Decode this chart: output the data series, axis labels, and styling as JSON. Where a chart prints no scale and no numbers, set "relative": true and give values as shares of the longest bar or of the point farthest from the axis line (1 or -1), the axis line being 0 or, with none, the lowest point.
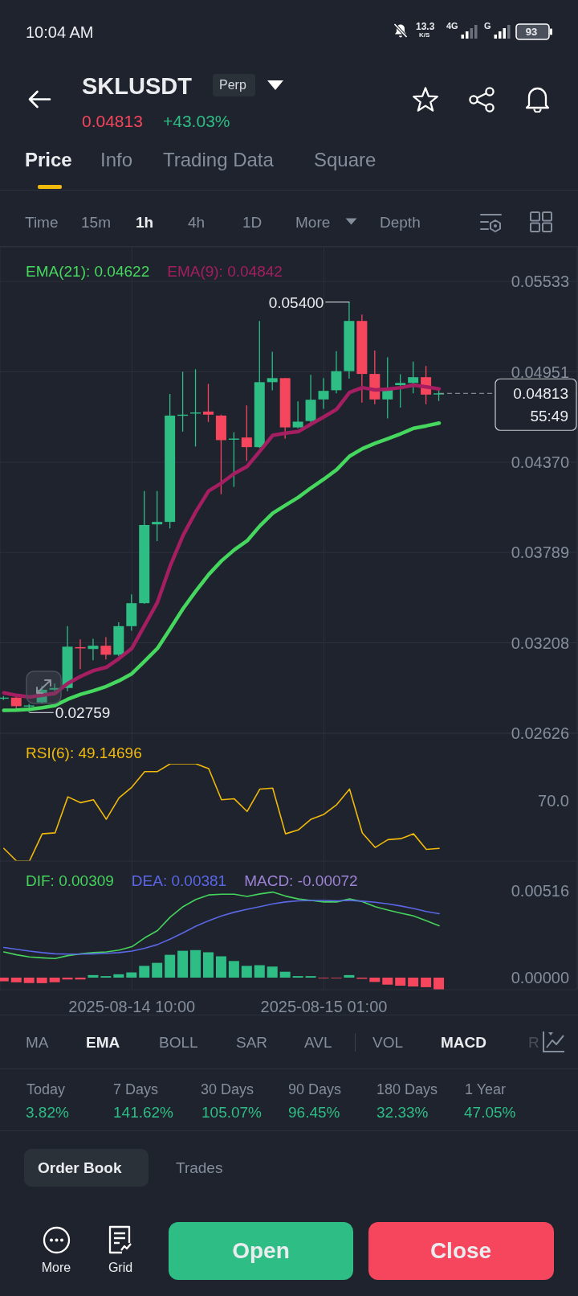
{
  "chart_data": [
    {
      "type": "other",
      "title": "SKLUSDT",
      "annotations": [
        "10:04 AM",
        "13.3",
        "K/S",
        "4G",
        "G",
        "93",
        "Perp",
        "0.04813",
        "+43.03%",
        "Price",
        "Info",
        "Trading Data",
        "Square",
        "Time",
        "15m",
        "1h",
        "4h",
        "1D",
        "More",
        "Depth"
      ]
    },
    {
      "type": "candlestick",
      "x": [
        "2025-08-14T00:00",
        "2025-08-14T01:00",
        "2025-08-14T02:00",
        "2025-08-14T03:00",
        "2025-08-14T04:00",
        "2025-08-14T05:00",
        "2025-08-14T06:00",
        "2025-08-14T07:00",
        "2025-08-14T08:00",
        "2025-08-14T09:00",
        "2025-08-14T10:00",
        "2025-08-14T11:00",
        "2025-08-14T12:00",
        "2025-08-14T13:00",
        "2025-08-14T14:00",
        "2025-08-14T15:00",
        "2025-08-14T16:00",
        "2025-08-14T17:00",
        "2025-08-14T18:00",
        "2025-08-14T19:00",
        "2025-08-14T20:00",
        "2025-08-14T21:00",
        "2025-08-14T22:00",
        "2025-08-14T23:00",
        "2025-08-15T00:00",
        "2025-08-15T01:00",
        "2025-08-15T02:00",
        "2025-08-15T03:00",
        "2025-08-15T04:00",
        "2025-08-15T05:00",
        "2025-08-15T06:00",
        "2025-08-15T07:00",
        "2025-08-15T08:00",
        "2025-08-15T09:00",
        "2025-08-15T10:00"
      ],
      "ohlc": [
        [
          0.0285,
          0.02865,
          0.0284,
          0.02855
        ],
        [
          0.02855,
          0.02865,
          0.02775,
          0.028
        ],
        [
          0.028,
          0.02815,
          0.02759,
          0.02805
        ],
        [
          0.02824,
          0.0293,
          0.02815,
          0.02906
        ],
        [
          0.02906,
          0.02945,
          0.02896,
          0.02917
        ],
        [
          0.02917,
          0.03315,
          0.02896,
          0.03183
        ],
        [
          0.0318,
          0.0323,
          0.03039,
          0.03172
        ],
        [
          0.03168,
          0.03234,
          0.03095,
          0.03189
        ],
        [
          0.03189,
          0.03244,
          0.03101,
          0.03131
        ],
        [
          0.03131,
          0.0334,
          0.03121,
          0.03315
        ],
        [
          0.03315,
          0.0352,
          0.03285,
          0.03463
        ],
        [
          0.03463,
          0.04185,
          0.03459,
          0.03966
        ],
        [
          0.0397,
          0.04185,
          0.03862,
          0.03986
        ],
        [
          0.03986,
          0.04809,
          0.03944,
          0.0467
        ],
        [
          0.04672,
          0.04952,
          0.04567,
          0.04676
        ],
        [
          0.04686,
          0.04968,
          0.04471,
          0.0469
        ],
        [
          0.04696,
          0.04874,
          0.04629,
          0.04676
        ],
        [
          0.0467,
          0.04676,
          0.04164,
          0.04512
        ],
        [
          0.04518,
          0.04563,
          0.04211,
          0.04522
        ],
        [
          0.04529,
          0.04735,
          0.04379,
          0.04467
        ],
        [
          0.04467,
          0.05279,
          0.04461,
          0.04885
        ],
        [
          0.04885,
          0.05081,
          0.04833,
          0.04911
        ],
        [
          0.04911,
          0.04911,
          0.04522,
          0.04594
        ],
        [
          0.04594,
          0.04762,
          0.04588,
          0.04631
        ],
        [
          0.04635,
          0.04932,
          0.04625,
          0.04772
        ],
        [
          0.04774,
          0.04911,
          0.04713,
          0.04829
        ],
        [
          0.04833,
          0.05085,
          0.04813,
          0.04956
        ],
        [
          0.04956,
          0.054,
          0.04907,
          0.05279
        ],
        [
          0.05279,
          0.0532,
          0.04754,
          0.04938
        ],
        [
          0.04938,
          0.05089,
          0.04743,
          0.04774
        ],
        [
          0.04774,
          0.05044,
          0.04651,
          0.04846
        ],
        [
          0.04866,
          0.04936,
          0.04721,
          0.0488
        ],
        [
          0.0488,
          0.05018,
          0.04813,
          0.04917
        ],
        [
          0.04917,
          0.04989,
          0.04743,
          0.04805
        ],
        [
          0.04809,
          0.0483,
          0.04764,
          0.04813
        ]
      ],
      "colors": [
        "#2ebd85",
        "#f6465d",
        "#2ebd85",
        "#2ebd85",
        "#2ebd85",
        "#2ebd85",
        "#f6465d",
        "#2ebd85",
        "#f6465d",
        "#2ebd85",
        "#2ebd85",
        "#2ebd85",
        "#2ebd85",
        "#2ebd85",
        "#2ebd85",
        "#2ebd85",
        "#f6465d",
        "#f6465d",
        "#2ebd85",
        "#f6465d",
        "#2ebd85",
        "#2ebd85",
        "#f6465d",
        "#2ebd85",
        "#2ebd85",
        "#2ebd85",
        "#2ebd85",
        "#2ebd85",
        "#f6465d",
        "#f6465d",
        "#2ebd85",
        "#2ebd85",
        "#2ebd85",
        "#f6465d",
        "#2ebd85"
      ],
      "series": [
        {
          "name": "EMA(21): 0.04622",
          "type": "line",
          "color": "#46d85e",
          "values": [
            0.02773,
            0.02775,
            0.0278,
            0.0279,
            0.02804,
            0.02845,
            0.02876,
            0.029,
            0.02927,
            0.02964,
            0.03009,
            0.0309,
            0.03172,
            0.03299,
            0.03428,
            0.03541,
            0.03647,
            0.03735,
            0.03806,
            0.03864,
            0.0396,
            0.04042,
            0.04093,
            0.04144,
            0.04205,
            0.04261,
            0.04322,
            0.04408,
            0.04457,
            0.04492,
            0.04522,
            0.04553,
            0.04588,
            0.04604,
            0.04622
          ]
        },
        {
          "name": "EMA(9): 0.04842",
          "type": "line",
          "color": "#a61e62",
          "values": [
            0.02886,
            0.0287,
            0.02859,
            0.0287,
            0.02882,
            0.02947,
            0.02992,
            0.03029,
            0.0305,
            0.03107,
            0.03172,
            0.0332,
            0.03469,
            0.03704,
            0.03899,
            0.04052,
            0.04185,
            0.04236,
            0.04297,
            0.04342,
            0.04441,
            0.04543,
            0.04557,
            0.04567,
            0.04615,
            0.04662,
            0.04711,
            0.04819,
            0.0485,
            0.04835,
            0.0484,
            0.0485,
            0.04866,
            0.04854,
            0.04842
          ]
        }
      ],
      "xlim": [
        "2025-08-13T23:42",
        "2025-08-15T20:47"
      ],
      "xticks": [
        {
          "value": "2025-08-14T10:00",
          "label": null
        },
        {
          "value": "2025-08-15T01:00",
          "label": null
        }
      ],
      "ylim": [
        0.02626,
        0.05756
      ],
      "yticks": [
        0.02626,
        0.03208,
        0.03789,
        {
          "value": 0.0437,
          "label": "0.04370"
        },
        0.04951,
        0.05533
      ],
      "grid": true,
      "legend": "top left",
      "tick_labels": "y",
      "ref_lines": [
        {
          "axis": "y",
          "value": 0.04813,
          "label": "0.04813",
          "line_style": "dashed",
          "color": "#9aa0aa"
        }
      ],
      "annotations": [
        {
          "text": "0.05400",
          "x": "2025-08-15T03:00",
          "y": 0.054
        },
        {
          "text": "0.02759",
          "x": "2025-08-14T02:00",
          "y": 0.02759
        },
        "55:49"
      ]
    },
    {
      "type": "line",
      "relative": true,
      "x": [
        "2025-08-14T00:00",
        "2025-08-14T01:00",
        "2025-08-14T02:00",
        "2025-08-14T03:00",
        "2025-08-14T04:00",
        "2025-08-14T05:00",
        "2025-08-14T06:00",
        "2025-08-14T07:00",
        "2025-08-14T08:00",
        "2025-08-14T09:00",
        "2025-08-14T10:00",
        "2025-08-14T11:00",
        "2025-08-14T12:00",
        "2025-08-14T13:00",
        "2025-08-14T14:00",
        "2025-08-14T15:00",
        "2025-08-14T16:00",
        "2025-08-14T17:00",
        "2025-08-14T18:00",
        "2025-08-14T19:00",
        "2025-08-14T20:00",
        "2025-08-14T21:00",
        "2025-08-14T22:00",
        "2025-08-14T23:00",
        "2025-08-15T00:00",
        "2025-08-15T01:00",
        "2025-08-15T02:00",
        "2025-08-15T03:00",
        "2025-08-15T04:00",
        "2025-08-15T05:00",
        "2025-08-15T06:00",
        "2025-08-15T07:00",
        "2025-08-15T08:00",
        "2025-08-15T09:00",
        "2025-08-15T10:00"
      ],
      "series": [
        {
          "name": "RSI(6): 49.14696",
          "color": "#f0b90b",
          "values": [
            0.13,
            0,
            0,
            0.28,
            0.29,
            0.66,
            0.6,
            0.63,
            0.43,
            0.65,
            0.76,
            0.92,
            0.92,
            1,
            1,
            1,
            0.95,
            0.63,
            0.64,
            0.51,
            0.74,
            0.75,
            0.28,
            0.32,
            0.43,
            0.48,
            0.58,
            0.74,
            0.29,
            0.14,
            0.22,
            0.23,
            0.28,
            0.12,
            0.13
          ]
        }
      ],
      "xlim": [
        "2025-08-13T23:42",
        "2025-08-15T20:47"
      ],
      "xticks": [
        {
          "value": "2025-08-14T10:00",
          "label": null
        },
        {
          "value": "2025-08-15T01:00",
          "label": null
        }
      ],
      "grid": "x",
      "legend": "top left",
      "tick_labels": false,
      "annotations": [
        "70.0"
      ]
    },
    {
      "type": "line",
      "x": [
        "2025-08-14T00:00",
        "2025-08-14T01:00",
        "2025-08-14T02:00",
        "2025-08-14T03:00",
        "2025-08-14T04:00",
        "2025-08-14T05:00",
        "2025-08-14T06:00",
        "2025-08-14T07:00",
        "2025-08-14T08:00",
        "2025-08-14T09:00",
        "2025-08-14T10:00",
        "2025-08-14T11:00",
        "2025-08-14T12:00",
        "2025-08-14T13:00",
        "2025-08-14T14:00",
        "2025-08-14T15:00",
        "2025-08-14T16:00",
        "2025-08-14T17:00",
        "2025-08-14T18:00",
        "2025-08-14T19:00",
        "2025-08-14T20:00",
        "2025-08-14T21:00",
        "2025-08-14T22:00",
        "2025-08-14T23:00",
        "2025-08-15T00:00",
        "2025-08-15T01:00",
        "2025-08-15T02:00",
        "2025-08-15T03:00",
        "2025-08-15T04:00",
        "2025-08-15T05:00",
        "2025-08-15T06:00",
        "2025-08-15T07:00",
        "2025-08-15T08:00",
        "2025-08-15T09:00",
        "2025-08-15T10:00"
      ],
      "series": [
        {
          "name": "DIF: 0.00309",
          "color": "#45d35c",
          "values": [
            0.00153,
            0.00136,
            0.00123,
            0.00118,
            0.00114,
            0.00131,
            0.00142,
            0.00149,
            0.00153,
            0.00164,
            0.00184,
            0.00237,
            0.0028,
            0.00361,
            0.00423,
            0.00466,
            0.00493,
            0.00497,
            0.00497,
            0.00484,
            0.00499,
            0.0051,
            0.00486,
            0.00469,
            0.0046,
            0.00451,
            0.00451,
            0.00469,
            0.00453,
            0.00423,
            0.00403,
            0.00385,
            0.00368,
            0.00339,
            0.00309
          ]
        },
        {
          "name": "DEA: 0.00381",
          "color": "#5a67e6",
          "values": [
            0.0018,
            0.00169,
            0.00158,
            0.00149,
            0.00142,
            0.0014,
            0.0014,
            0.00142,
            0.00145,
            0.00149,
            0.00158,
            0.00175,
            0.00197,
            0.0023,
            0.00267,
            0.00307,
            0.00339,
            0.00368,
            0.0039,
            0.00407,
            0.00423,
            0.0044,
            0.00451,
            0.00458,
            0.0046,
            0.0046,
            0.00458,
            0.0046,
            0.00456,
            0.00449,
            0.0044,
            0.00427,
            0.00412,
            0.00394,
            0.00381
          ]
        },
        {
          "type": "bar",
          "colors": [
            "#f6465d",
            "#f6465d",
            "#f6465d",
            "#f6465d",
            "#f6465d",
            "#f6465d",
            "#f6465d",
            "#2ebd85",
            "#2ebd85",
            "#2ebd85",
            "#2ebd85",
            "#2ebd85",
            "#2ebd85",
            "#2ebd85",
            "#2ebd85",
            "#2ebd85",
            "#2ebd85",
            "#2ebd85",
            "#2ebd85",
            "#2ebd85",
            "#2ebd85",
            "#2ebd85",
            "#2ebd85",
            "#2ebd85",
            "#2ebd85",
            "#f6465d",
            "#f6465d",
            "#2ebd85",
            "#f6465d",
            "#f6465d",
            "#f6465d",
            "#f6465d",
            "#f6465d",
            "#f6465d",
            "#f6465d"
          ],
          "values": [
            -0.00022,
            -0.00028,
            -0.00033,
            -0.00033,
            -0.00028,
            -0.00011,
            -0.00011,
            0.00015,
            9e-05,
            0.0002,
            0.00031,
            0.0007,
            0.00088,
            0.00136,
            0.0016,
            0.00164,
            0.00151,
            0.00127,
            0.00099,
            0.0007,
            0.00074,
            0.00066,
            0.00035,
            9e-05,
            9e-05,
            -4e-05,
            -4e-05,
            0.00015,
            -7e-05,
            -0.00026,
            -0.00042,
            -0.00048,
            -0.00053,
            -0.00057,
            -0.00072
          ]
        }
      ],
      "xlim": [
        "2025-08-13T23:42",
        "2025-08-15T20:47"
      ],
      "xticks": [
        {
          "value": "2025-08-14T10:00",
          "label": "2025-08-14 10:00"
        },
        {
          "value": "2025-08-15T01:00",
          "label": "2025-08-15 01:00"
        }
      ],
      "ylim": [
        -0.00072,
        0.00695
      ],
      "yticks": [
        {
          "value": 0,
          "label": "0.00000"
        },
        0.00516
      ],
      "grid": "x",
      "legend": "top left",
      "annotations": [
        "MACD: -0.00072"
      ]
    },
    {
      "type": "other",
      "annotations": [
        "MA",
        "EMA",
        "BOLL",
        "SAR",
        "AVL",
        "VOL",
        "MACD",
        "R",
        "Today",
        "3.82%",
        "7 Days",
        "141.62%",
        "30 Days",
        "105.07%",
        "90 Days",
        "96.45%",
        "180 Days",
        "32.33%",
        "1 Year",
        "47.05%",
        "Order Book",
        "Trades",
        "More",
        "Grid",
        "Open",
        "Close"
      ]
    }
  ]
}
